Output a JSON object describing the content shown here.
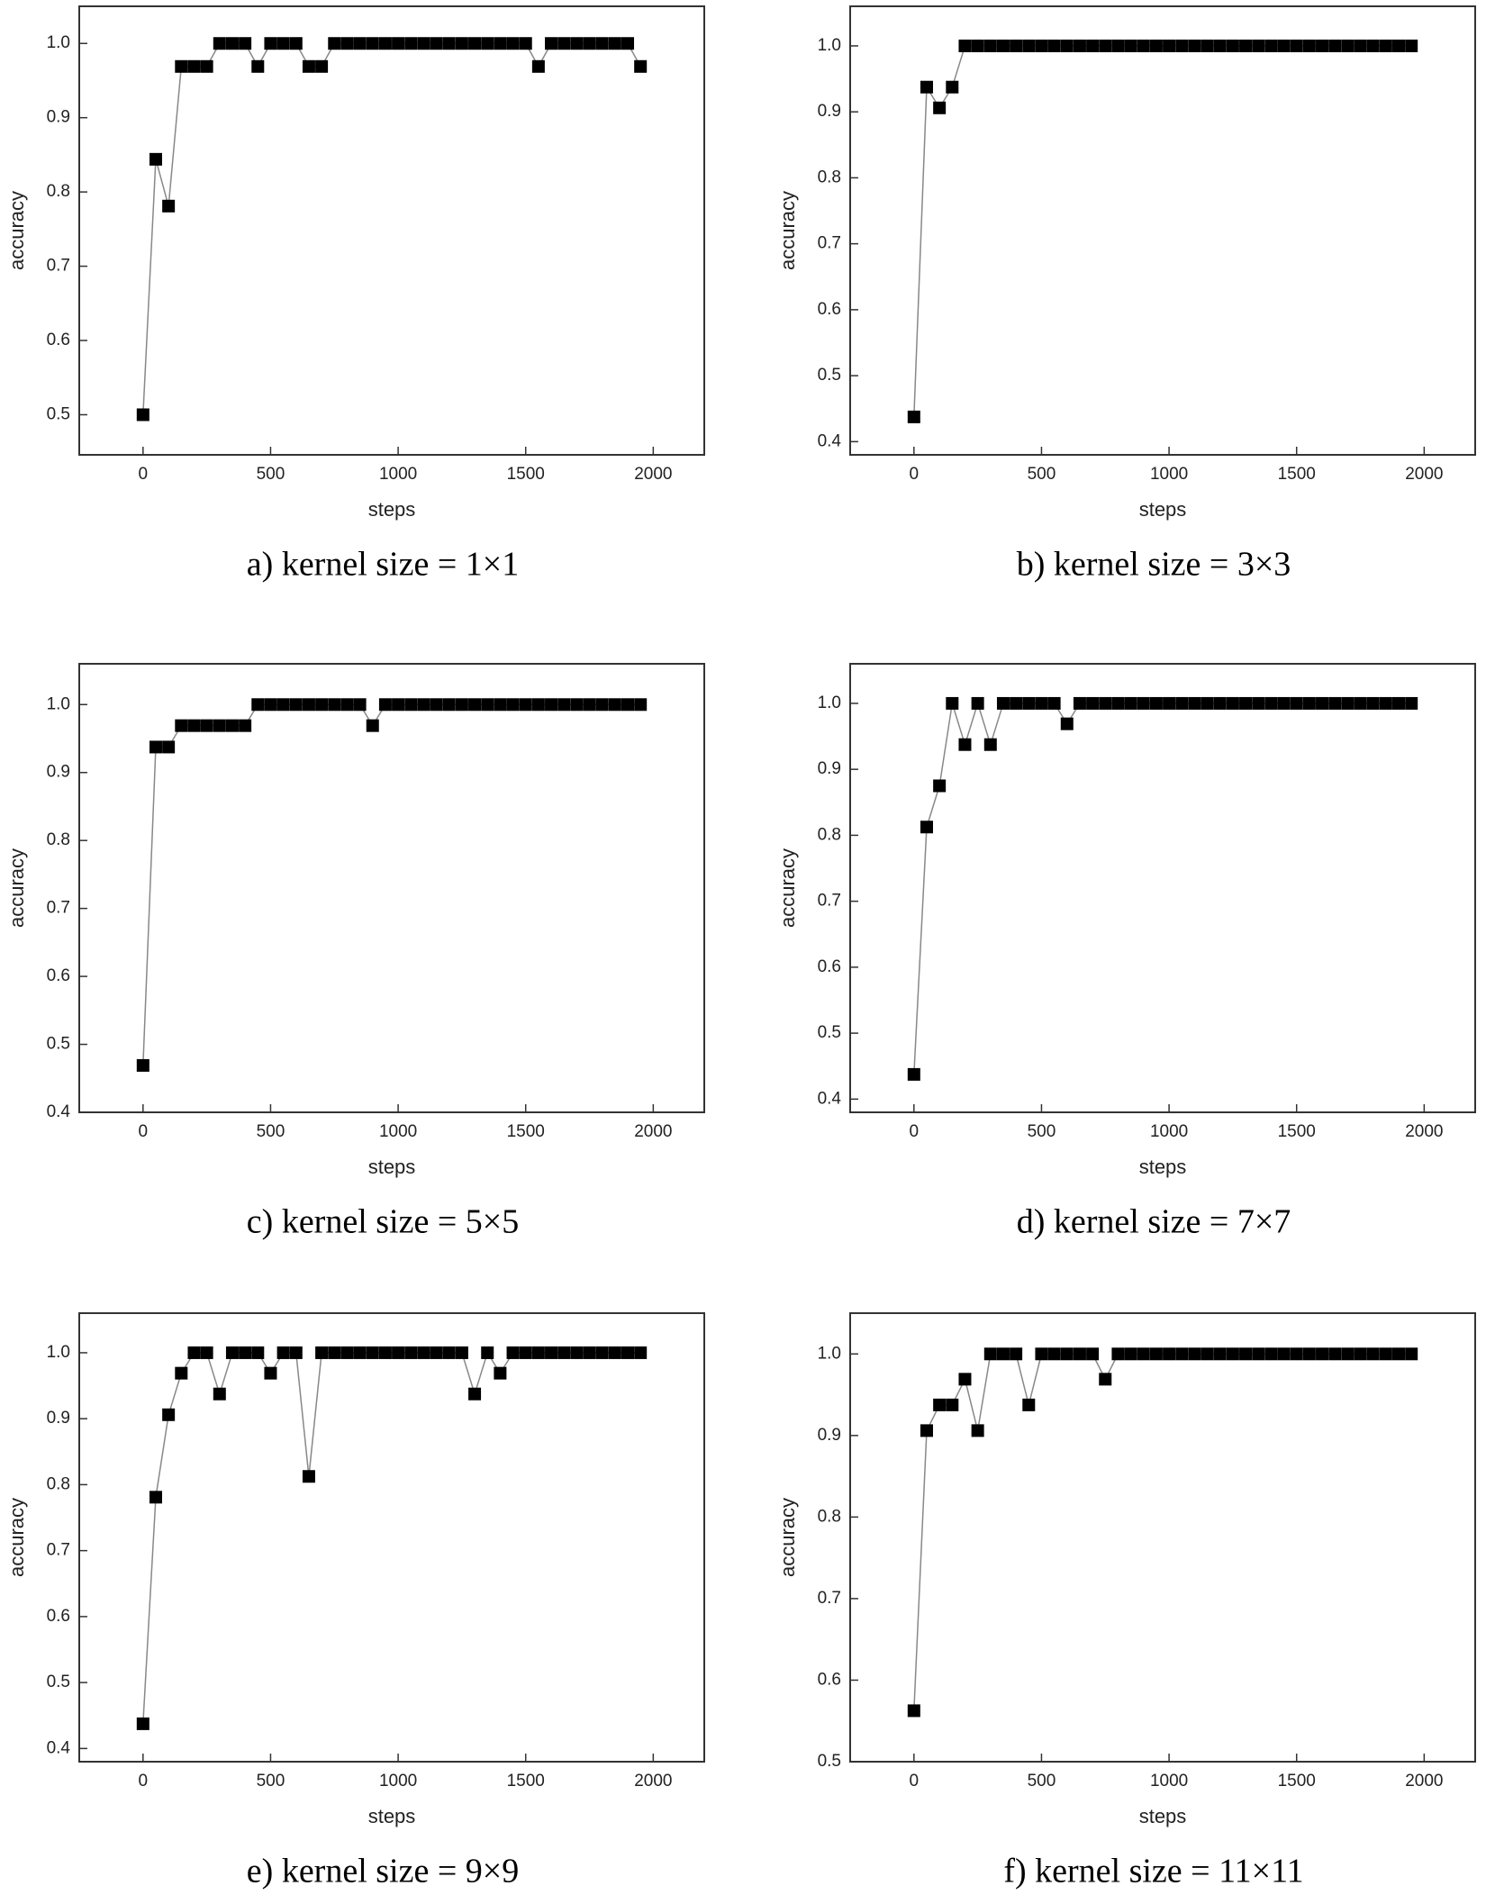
{
  "chart_data": [
    {
      "type": "line",
      "caption": "a) kernel size = 1×1",
      "xlabel": "steps",
      "ylabel": "accuracy",
      "color": "#000000",
      "x": [
        0,
        50,
        100,
        150,
        200,
        250,
        300,
        350,
        400,
        450,
        500,
        550,
        600,
        650,
        700,
        750,
        800,
        850,
        900,
        950,
        1000,
        1050,
        1100,
        1150,
        1200,
        1250,
        1300,
        1350,
        1400,
        1450,
        1500,
        1550,
        1600,
        1650,
        1700,
        1750,
        1800,
        1850,
        1900,
        1950
      ],
      "values": [
        0.5,
        0.844,
        0.781,
        0.969,
        0.969,
        0.969,
        1,
        1,
        1,
        0.969,
        1,
        1,
        1,
        0.969,
        0.969,
        1,
        1,
        1,
        1,
        1,
        1,
        1,
        1,
        1,
        1,
        1,
        1,
        1,
        1,
        1,
        1,
        0.969,
        1,
        1,
        1,
        1,
        1,
        1,
        1,
        0.969
      ],
      "xlim": [
        -250,
        2200
      ],
      "xticks": [
        0,
        500,
        1000,
        1500,
        2000
      ],
      "ylim": [
        0.446,
        1.05
      ],
      "yticks": [
        0.5,
        0.6,
        0.7,
        0.8,
        0.9,
        {
          "value": 1,
          "label": "1.0"
        }
      ]
    },
    {
      "type": "line",
      "caption": "b) kernel size = 3×3",
      "xlabel": "steps",
      "ylabel": "accuracy",
      "color": "#000000",
      "x": [
        0,
        50,
        100,
        150,
        200,
        250,
        300,
        350,
        400,
        450,
        500,
        550,
        600,
        650,
        700,
        750,
        800,
        850,
        900,
        950,
        1000,
        1050,
        1100,
        1150,
        1200,
        1250,
        1300,
        1350,
        1400,
        1450,
        1500,
        1550,
        1600,
        1650,
        1700,
        1750,
        1800,
        1850,
        1900,
        1950
      ],
      "values": [
        0.4375,
        0.9375,
        0.906,
        0.9375,
        1,
        1,
        1,
        1,
        1,
        1,
        1,
        1,
        1,
        1,
        1,
        1,
        1,
        1,
        1,
        1,
        1,
        1,
        1,
        1,
        1,
        1,
        1,
        1,
        1,
        1,
        1,
        1,
        1,
        1,
        1,
        1,
        1,
        1,
        1,
        1
      ],
      "xlim": [
        -250,
        2200
      ],
      "xticks": [
        0,
        500,
        1000,
        1500,
        2000
      ],
      "ylim": [
        0.38,
        1.06
      ],
      "yticks": [
        0.4,
        0.5,
        0.6,
        0.7,
        0.8,
        0.9,
        {
          "value": 1,
          "label": "1.0"
        }
      ]
    },
    {
      "type": "line",
      "caption": "c) kernel size = 5×5",
      "xlabel": "steps",
      "ylabel": "accuracy",
      "color": "#000000",
      "x": [
        0,
        50,
        100,
        150,
        200,
        250,
        300,
        350,
        400,
        450,
        500,
        550,
        600,
        650,
        700,
        750,
        800,
        850,
        900,
        950,
        1000,
        1050,
        1100,
        1150,
        1200,
        1250,
        1300,
        1350,
        1400,
        1450,
        1500,
        1550,
        1600,
        1650,
        1700,
        1750,
        1800,
        1850,
        1900,
        1950
      ],
      "values": [
        0.469,
        0.9375,
        0.9375,
        0.969,
        0.969,
        0.969,
        0.969,
        0.969,
        0.969,
        1,
        1,
        1,
        1,
        1,
        1,
        1,
        1,
        1,
        0.969,
        1,
        1,
        1,
        1,
        1,
        1,
        1,
        1,
        1,
        1,
        1,
        1,
        1,
        1,
        1,
        1,
        1,
        1,
        1,
        1,
        1
      ],
      "xlim": [
        -250,
        2200
      ],
      "xticks": [
        0,
        500,
        1000,
        1500,
        2000
      ],
      "ylim": [
        0.4,
        1.06
      ],
      "yticks": [
        0.4,
        0.5,
        0.6,
        0.7,
        0.8,
        0.9,
        {
          "value": 1,
          "label": "1.0"
        }
      ]
    },
    {
      "type": "line",
      "caption": "d) kernel size = 7×7",
      "xlabel": "steps",
      "ylabel": "accuracy",
      "color": "#000000",
      "x": [
        0,
        50,
        100,
        150,
        200,
        250,
        300,
        350,
        400,
        450,
        500,
        550,
        600,
        650,
        700,
        750,
        800,
        850,
        900,
        950,
        1000,
        1050,
        1100,
        1150,
        1200,
        1250,
        1300,
        1350,
        1400,
        1450,
        1500,
        1550,
        1600,
        1650,
        1700,
        1750,
        1800,
        1850,
        1900,
        1950
      ],
      "values": [
        0.4375,
        0.8125,
        0.875,
        1,
        0.9375,
        1,
        0.9375,
        1,
        1,
        1,
        1,
        1,
        0.969,
        1,
        1,
        1,
        1,
        1,
        1,
        1,
        1,
        1,
        1,
        1,
        1,
        1,
        1,
        1,
        1,
        1,
        1,
        1,
        1,
        1,
        1,
        1,
        1,
        1,
        1,
        1
      ],
      "xlim": [
        -250,
        2200
      ],
      "xticks": [
        0,
        500,
        1000,
        1500,
        2000
      ],
      "ylim": [
        0.38,
        1.06
      ],
      "yticks": [
        0.4,
        0.5,
        0.6,
        0.7,
        0.8,
        0.9,
        {
          "value": 1,
          "label": "1.0"
        }
      ]
    },
    {
      "type": "line",
      "caption": "e) kernel size = 9×9",
      "xlabel": "steps",
      "ylabel": "accuracy",
      "color": "#000000",
      "x": [
        0,
        50,
        100,
        150,
        200,
        250,
        300,
        350,
        400,
        450,
        500,
        550,
        600,
        650,
        700,
        750,
        800,
        850,
        900,
        950,
        1000,
        1050,
        1100,
        1150,
        1200,
        1250,
        1300,
        1350,
        1400,
        1450,
        1500,
        1550,
        1600,
        1650,
        1700,
        1750,
        1800,
        1850,
        1900,
        1950
      ],
      "values": [
        0.4375,
        0.781,
        0.906,
        0.969,
        1,
        1,
        0.9375,
        1,
        1,
        1,
        0.969,
        1,
        1,
        0.8125,
        1,
        1,
        1,
        1,
        1,
        1,
        1,
        1,
        1,
        1,
        1,
        1,
        0.9375,
        1,
        0.969,
        1,
        1,
        1,
        1,
        1,
        1,
        1,
        1,
        1,
        1,
        1
      ],
      "xlim": [
        -250,
        2200
      ],
      "xticks": [
        0,
        500,
        1000,
        1500,
        2000
      ],
      "ylim": [
        0.38,
        1.06
      ],
      "yticks": [
        0.4,
        0.5,
        0.6,
        0.7,
        0.8,
        0.9,
        {
          "value": 1,
          "label": "1.0"
        }
      ]
    },
    {
      "type": "line",
      "caption": "f) kernel size = 11×11",
      "xlabel": "steps",
      "ylabel": "accuracy",
      "color": "#000000",
      "x": [
        0,
        50,
        100,
        150,
        200,
        250,
        300,
        350,
        400,
        450,
        500,
        550,
        600,
        650,
        700,
        750,
        800,
        850,
        900,
        950,
        1000,
        1050,
        1100,
        1150,
        1200,
        1250,
        1300,
        1350,
        1400,
        1450,
        1500,
        1550,
        1600,
        1650,
        1700,
        1750,
        1800,
        1850,
        1900,
        1950
      ],
      "values": [
        0.5625,
        0.906,
        0.9375,
        0.9375,
        0.969,
        0.906,
        1,
        1,
        1,
        0.9375,
        1,
        1,
        1,
        1,
        1,
        0.969,
        1,
        1,
        1,
        1,
        1,
        1,
        1,
        1,
        1,
        1,
        1,
        1,
        1,
        1,
        1,
        1,
        1,
        1,
        1,
        1,
        1,
        1,
        1,
        1
      ],
      "xlim": [
        -250,
        2200
      ],
      "xticks": [
        0,
        500,
        1000,
        1500,
        2000
      ],
      "ylim": [
        0.5,
        1.05
      ],
      "yticks": [
        0.5,
        0.6,
        0.7,
        0.8,
        0.9,
        {
          "value": 1,
          "label": "1.0"
        }
      ]
    }
  ]
}
